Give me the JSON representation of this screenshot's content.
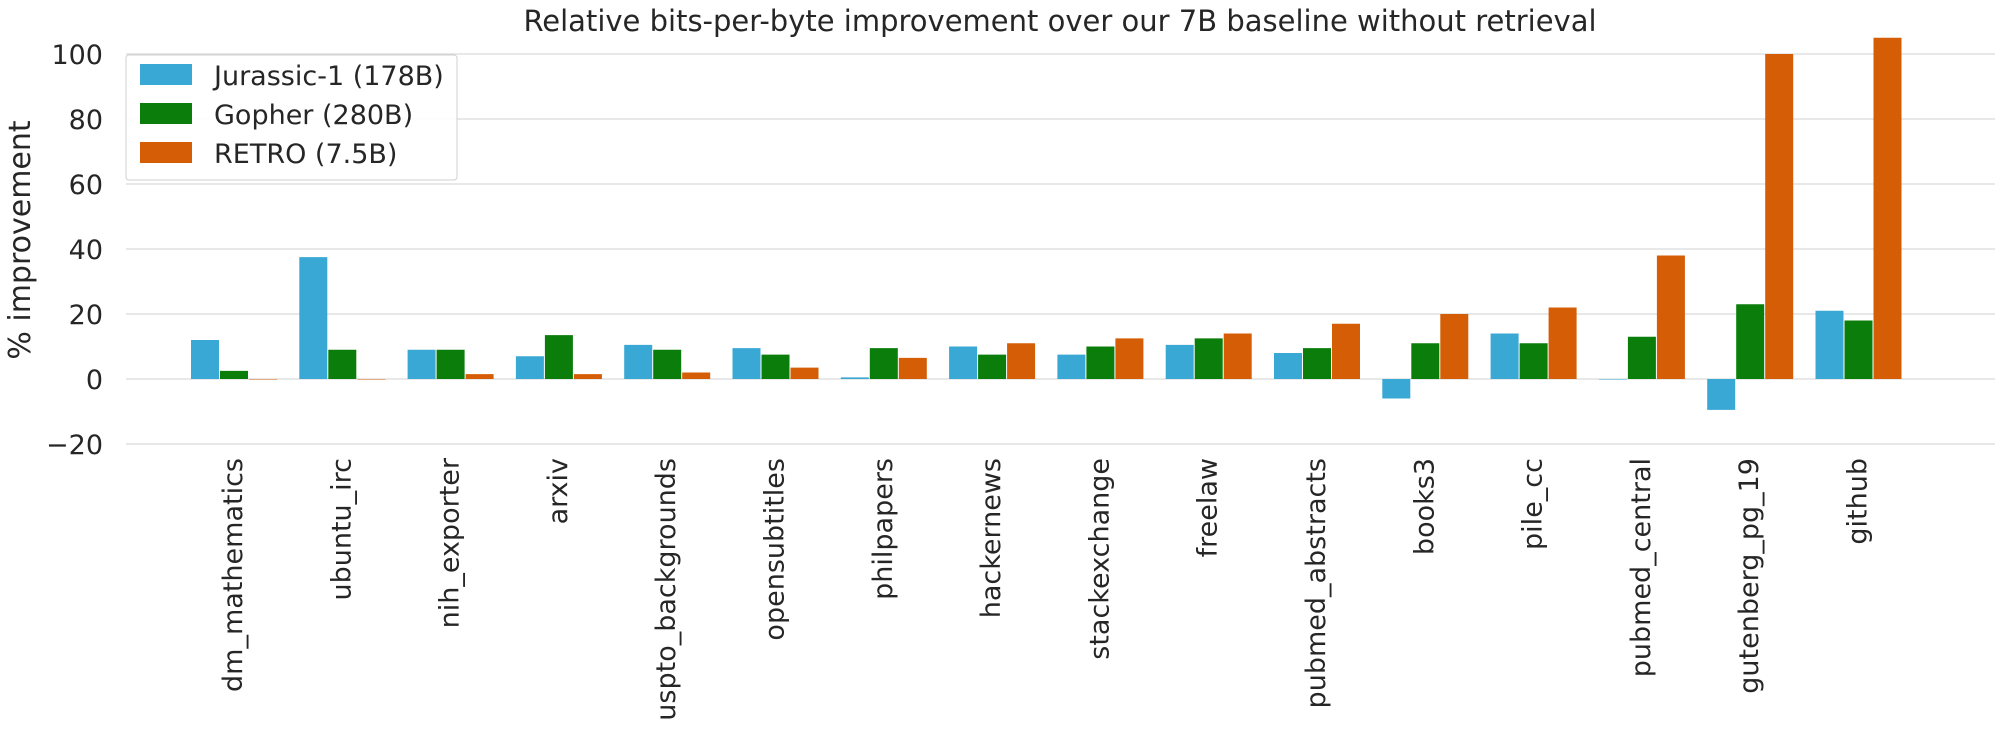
{
  "chart_data": {
    "type": "bar",
    "title": "Relative bits-per-byte improvement over our 7B baseline without retrieval",
    "ylabel": "% improvement",
    "xlabel": "",
    "ylim": [
      -20,
      100
    ],
    "yticks": [
      -20,
      0,
      20,
      40,
      60,
      80,
      100
    ],
    "ytick_labels": [
      "−20",
      "0",
      "20",
      "40",
      "60",
      "80",
      "100"
    ],
    "grid": true,
    "legend_position": "top-left",
    "categories": [
      "dm_mathematics",
      "ubuntu_irc",
      "nih_exporter",
      "arxiv",
      "uspto_backgrounds",
      "opensubtitles",
      "philpapers",
      "hackernews",
      "stackexchange",
      "freelaw",
      "pubmed_abstracts",
      "books3",
      "pile_cc",
      "pubmed_central",
      "gutenberg_pg_19",
      "github"
    ],
    "series": [
      {
        "name": "Jurassic-1 (178B)",
        "color": "#3aa8d4",
        "values": [
          12,
          37.5,
          9,
          7,
          10.5,
          9.5,
          0.5,
          10,
          7.5,
          10.5,
          8,
          -6,
          14,
          0,
          -9.5,
          21
        ]
      },
      {
        "name": "Gopher (280B)",
        "color": "#0a7d0a",
        "values": [
          2.5,
          9,
          9,
          13.5,
          9,
          7.5,
          9.5,
          7.5,
          10,
          12.5,
          9.5,
          11,
          11,
          13,
          23,
          18
        ]
      },
      {
        "name": "RETRO (7.5B)",
        "color": "#d45d05",
        "values": [
          0,
          0,
          1.5,
          1.5,
          2,
          3.5,
          6.5,
          11,
          12.5,
          14,
          17,
          20,
          22,
          38,
          100,
          105
        ]
      }
    ]
  }
}
